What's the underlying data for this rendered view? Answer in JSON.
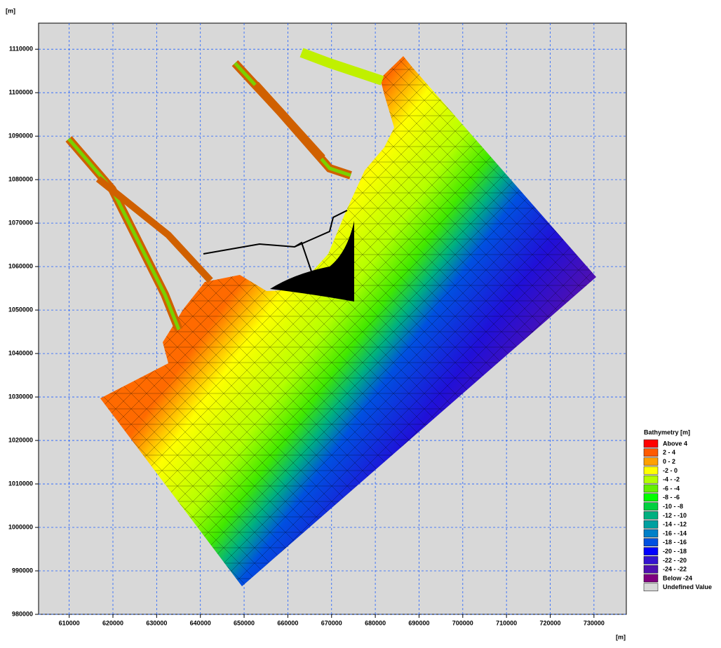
{
  "chart_data": {
    "type": "mesh",
    "y_label": "[m]",
    "x_label": "[m]",
    "xlim": [
      603000,
      737400
    ],
    "ylim": [
      980000,
      1116000
    ],
    "xticks": [
      610000,
      620000,
      630000,
      640000,
      650000,
      660000,
      670000,
      680000,
      690000,
      700000,
      710000,
      720000,
      730000
    ],
    "yticks": [
      980000,
      990000,
      1000000,
      1010000,
      1020000,
      1030000,
      1040000,
      1050000,
      1060000,
      1070000,
      1080000,
      1090000,
      1100000,
      1110000
    ],
    "grid": true,
    "legend": {
      "title": "Bathymetry [m]",
      "items": [
        {
          "label": "Above  4",
          "color": "#ff0000"
        },
        {
          "label": "2 -  4",
          "color": "#ff5a00"
        },
        {
          "label": "0 -  2",
          "color": "#ffa000"
        },
        {
          "label": "-2 -  0",
          "color": "#ffff00"
        },
        {
          "label": "-4 - -2",
          "color": "#b4ff00"
        },
        {
          "label": "-6 - -4",
          "color": "#64f000"
        },
        {
          "label": "-8 - -6",
          "color": "#00ff00"
        },
        {
          "label": "-10 - -8",
          "color": "#00d040"
        },
        {
          "label": "-12 - -10",
          "color": "#00b080"
        },
        {
          "label": "-14 - -12",
          "color": "#00a0a0"
        },
        {
          "label": "-16 - -14",
          "color": "#0080c8"
        },
        {
          "label": "-18 - -16",
          "color": "#0050e0"
        },
        {
          "label": "-20 - -18",
          "color": "#0000ff"
        },
        {
          "label": "-22 - -20",
          "color": "#3414d0"
        },
        {
          "label": "-24 - -22",
          "color": "#5010b0"
        },
        {
          "label": "Below -24",
          "color": "#800080"
        },
        {
          "label": "Undefined Value",
          "color": "#d8d8d8"
        }
      ]
    }
  }
}
